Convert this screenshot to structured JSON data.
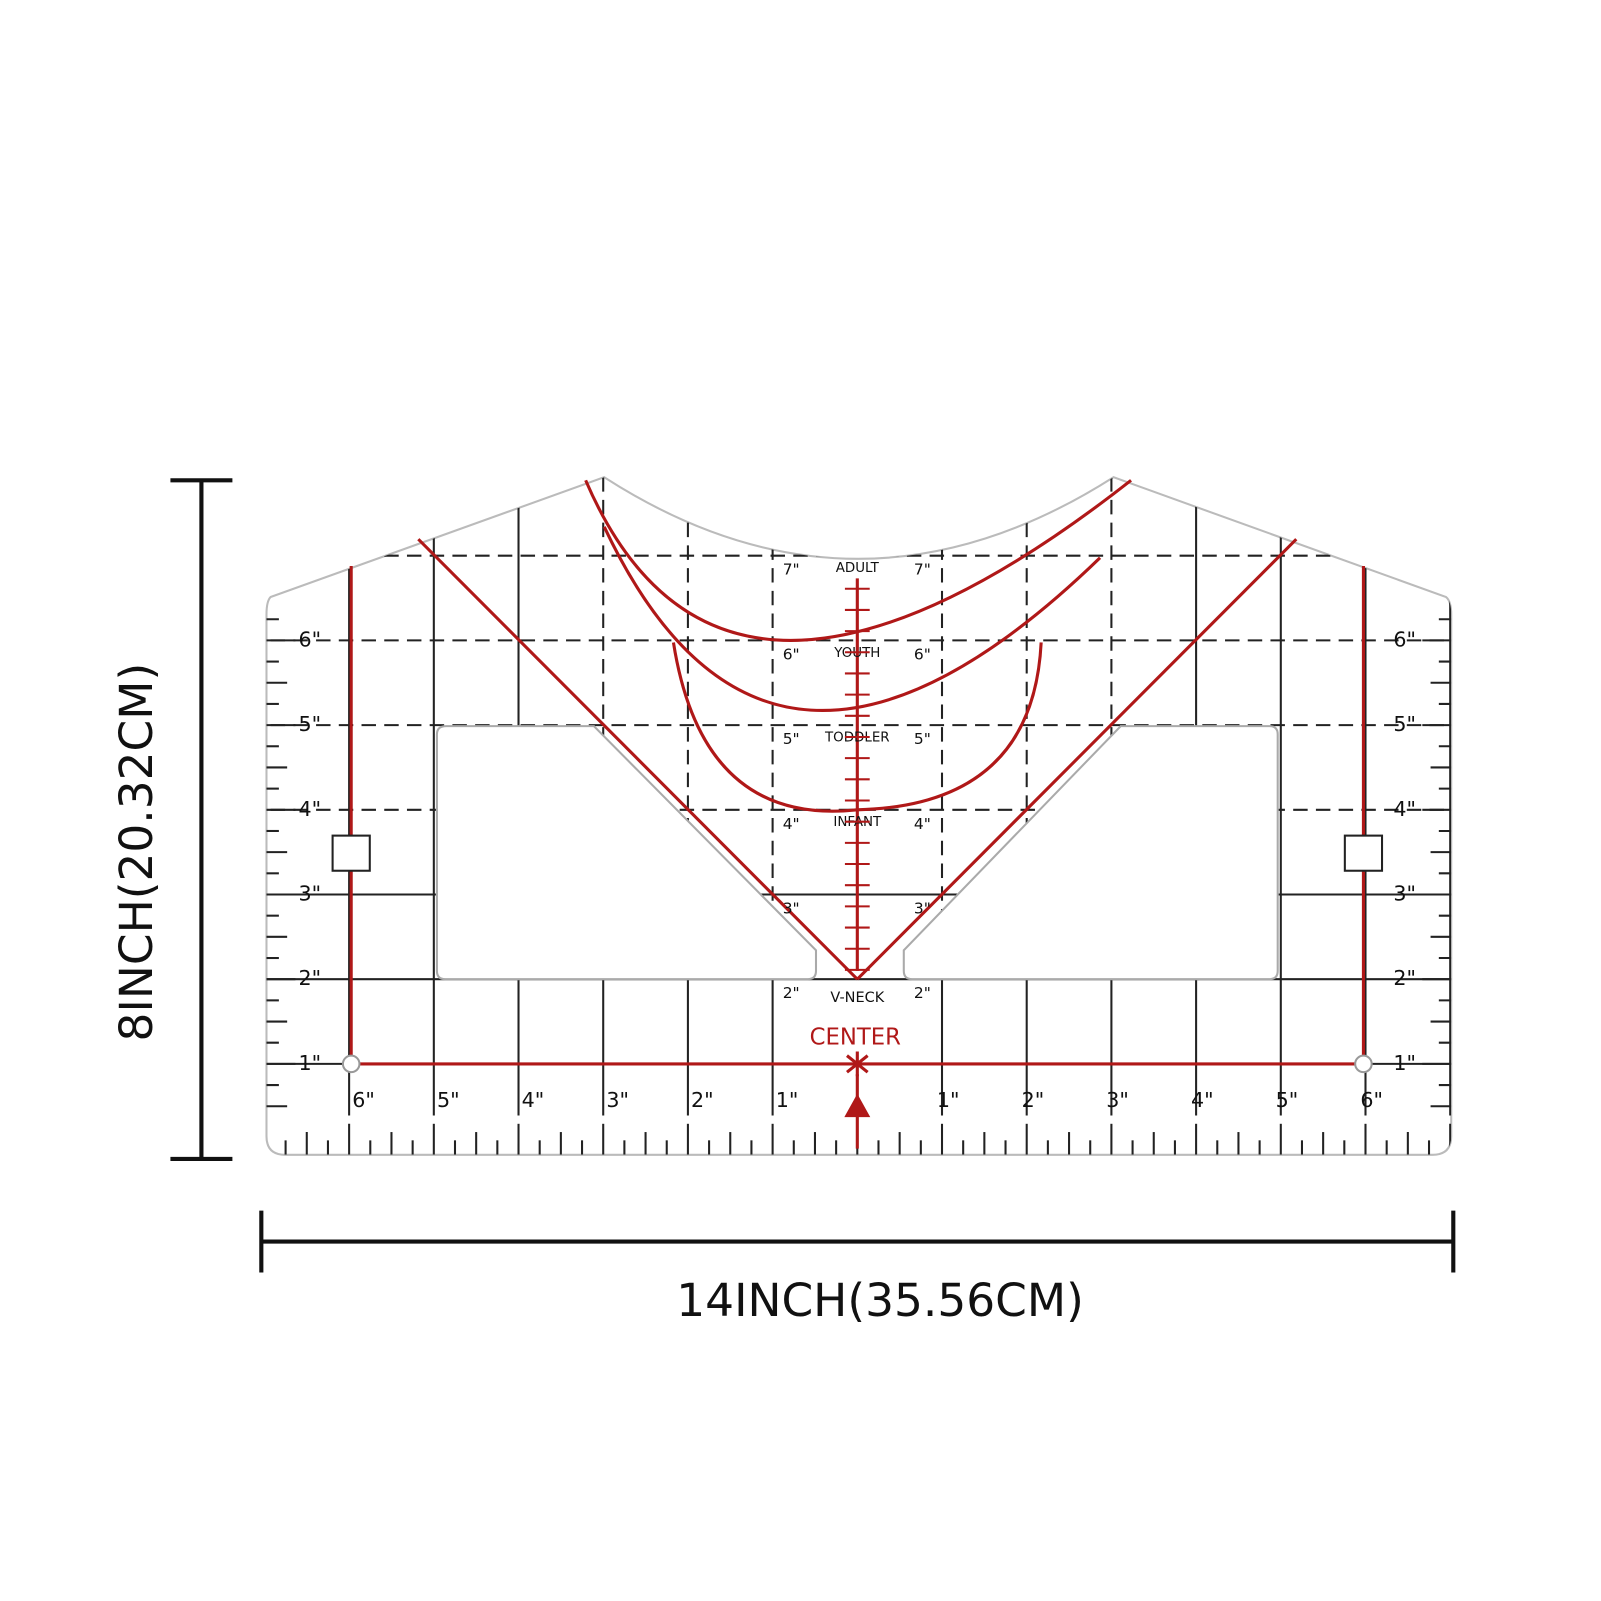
{
  "dimensions": {
    "height": "8INCH(20.32CM)",
    "width": "14INCH(35.56CM)"
  },
  "ruler": {
    "side_left": [
      "1\"",
      "2\"",
      "3\"",
      "4\"",
      "5\"",
      "6\""
    ],
    "side_right": [
      "1\"",
      "2\"",
      "3\"",
      "4\"",
      "5\"",
      "6\""
    ],
    "bottom_left": [
      "6\"",
      "5\"",
      "4\"",
      "3\"",
      "2\"",
      "1\""
    ],
    "bottom_right": [
      "1\"",
      "2\"",
      "3\"",
      "4\"",
      "5\"",
      "6\""
    ],
    "center_left": [
      "7\"",
      "6\"",
      "5\"",
      "4\"",
      "3\"",
      "2\""
    ],
    "center_right": [
      "7\"",
      "6\"",
      "5\"",
      "4\"",
      "3\"",
      "2\""
    ],
    "size_guides": [
      "ADULT",
      "YOUTH",
      "TODDLER",
      "INFANT"
    ],
    "v_neck": "V-NECK",
    "center": "CENTER"
  }
}
